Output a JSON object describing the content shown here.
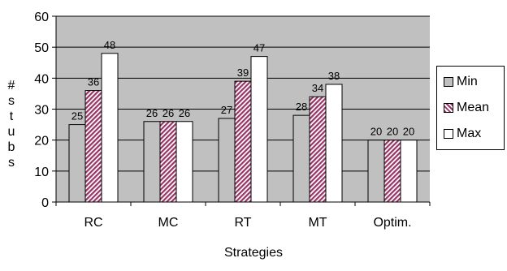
{
  "chart_data": {
    "type": "bar",
    "categories": [
      "RC",
      "MC",
      "RT",
      "MT",
      "Optim."
    ],
    "series": [
      {
        "name": "Min",
        "values": [
          25,
          26,
          27,
          28,
          20
        ],
        "color": "#c0c0c0",
        "pattern": "solid"
      },
      {
        "name": "Mean",
        "values": [
          36,
          26,
          39,
          34,
          20
        ],
        "color": "#993366",
        "pattern": "hatch"
      },
      {
        "name": "Max",
        "values": [
          48,
          26,
          47,
          38,
          20
        ],
        "color": "#ffffff",
        "pattern": "solid"
      }
    ],
    "data_labels": [
      [
        "25",
        "36",
        "48"
      ],
      [
        "26",
        "26",
        "26"
      ],
      [
        "27",
        "39",
        "47"
      ],
      [
        "28",
        "34",
        "38"
      ],
      [
        "20",
        "20",
        "20"
      ]
    ],
    "title": "",
    "xlabel": "Strategies",
    "ylabel": "#stubs",
    "ylim": [
      0,
      60
    ],
    "yticks": [
      0,
      10,
      20,
      30,
      40,
      50,
      60
    ],
    "grid": true,
    "plot_background": "#c0c0c0",
    "legend_position": "right"
  }
}
